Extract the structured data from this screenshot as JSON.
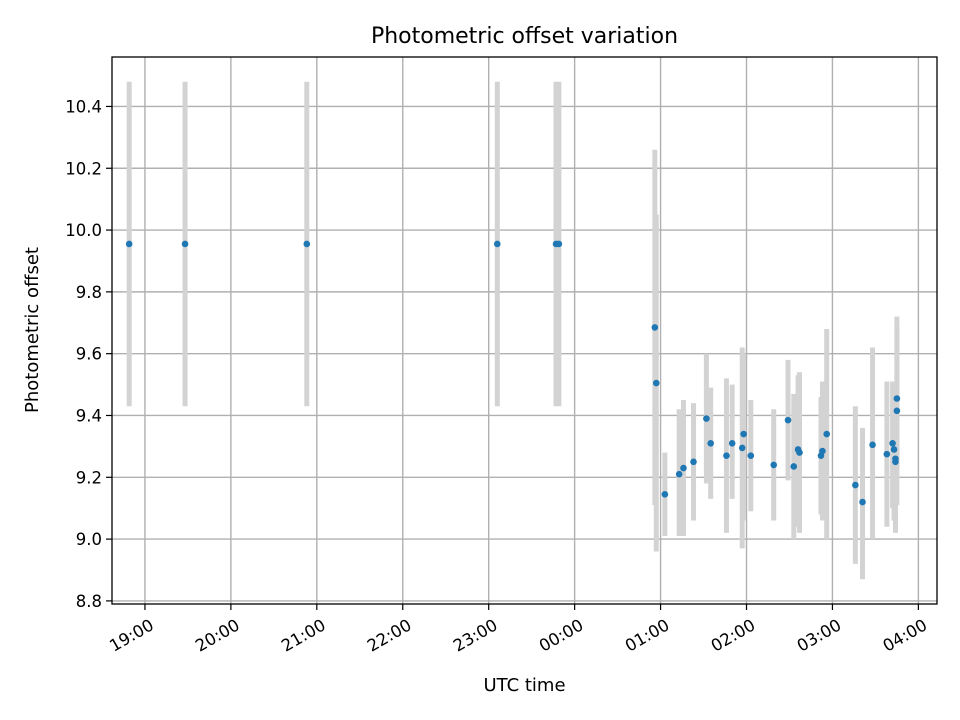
{
  "chart_data": {
    "type": "scatter",
    "title": "Photometric offset variation",
    "xlabel": "UTC time",
    "ylabel": "Photometric offset",
    "x_axis": "time",
    "x_unit": "UTC hour",
    "xlim": [
      "18:37",
      "04:13"
    ],
    "ylim": [
      8.79,
      10.56
    ],
    "xticks": [
      "19:00",
      "20:00",
      "21:00",
      "22:00",
      "23:00",
      "00:00",
      "01:00",
      "02:00",
      "03:00",
      "04:00"
    ],
    "yticks": [
      "8.8",
      "9.0",
      "9.2",
      "9.4",
      "9.6",
      "9.8",
      "10.0",
      "10.2",
      "10.4"
    ],
    "grid": true,
    "marker_color": "#1f77b4",
    "error_bar_color": "#d3d3d3",
    "points": [
      {
        "x": "18:49",
        "y": 9.955,
        "lo": 9.43,
        "hi": 10.48
      },
      {
        "x": "19:28",
        "y": 9.955,
        "lo": 9.43,
        "hi": 10.48
      },
      {
        "x": "20:53",
        "y": 9.955,
        "lo": 9.43,
        "hi": 10.48
      },
      {
        "x": "23:06",
        "y": 9.955,
        "lo": 9.43,
        "hi": 10.48
      },
      {
        "x": "23:47",
        "y": 9.955,
        "lo": 9.43,
        "hi": 10.48
      },
      {
        "x": "23:49",
        "y": 9.955,
        "lo": 9.43,
        "hi": 10.48
      },
      {
        "x": "00:56",
        "y": 9.685,
        "lo": 9.11,
        "hi": 10.26
      },
      {
        "x": "00:57",
        "y": 9.505,
        "lo": 8.96,
        "hi": 10.05
      },
      {
        "x": "01:03",
        "y": 9.145,
        "lo": 9.01,
        "hi": 9.28
      },
      {
        "x": "01:13",
        "y": 9.21,
        "lo": 9.01,
        "hi": 9.42
      },
      {
        "x": "01:16",
        "y": 9.23,
        "lo": 9.01,
        "hi": 9.45
      },
      {
        "x": "01:23",
        "y": 9.25,
        "lo": 9.06,
        "hi": 9.44
      },
      {
        "x": "01:32",
        "y": 9.39,
        "lo": 9.18,
        "hi": 9.6
      },
      {
        "x": "01:35",
        "y": 9.31,
        "lo": 9.13,
        "hi": 9.49
      },
      {
        "x": "01:46",
        "y": 9.27,
        "lo": 9.02,
        "hi": 9.52
      },
      {
        "x": "01:50",
        "y": 9.31,
        "lo": 9.13,
        "hi": 9.5
      },
      {
        "x": "01:57",
        "y": 9.295,
        "lo": 8.97,
        "hi": 9.62
      },
      {
        "x": "01:58",
        "y": 9.34,
        "lo": 9.06,
        "hi": 9.6
      },
      {
        "x": "02:03",
        "y": 9.27,
        "lo": 9.09,
        "hi": 9.45
      },
      {
        "x": "02:19",
        "y": 9.24,
        "lo": 9.06,
        "hi": 9.42
      },
      {
        "x": "02:29",
        "y": 9.385,
        "lo": 9.19,
        "hi": 9.58
      },
      {
        "x": "02:33",
        "y": 9.235,
        "lo": 9.0,
        "hi": 9.47
      },
      {
        "x": "02:36",
        "y": 9.29,
        "lo": 9.04,
        "hi": 9.53
      },
      {
        "x": "02:37",
        "y": 9.28,
        "lo": 9.02,
        "hi": 9.54
      },
      {
        "x": "02:52",
        "y": 9.27,
        "lo": 9.08,
        "hi": 9.46
      },
      {
        "x": "02:53",
        "y": 9.285,
        "lo": 9.06,
        "hi": 9.51
      },
      {
        "x": "02:56",
        "y": 9.34,
        "lo": 9.0,
        "hi": 9.68
      },
      {
        "x": "03:16",
        "y": 9.175,
        "lo": 8.92,
        "hi": 9.43
      },
      {
        "x": "03:21",
        "y": 9.12,
        "lo": 8.87,
        "hi": 9.36
      },
      {
        "x": "03:28",
        "y": 9.305,
        "lo": 9.0,
        "hi": 9.62
      },
      {
        "x": "03:38",
        "y": 9.275,
        "lo": 9.04,
        "hi": 9.51
      },
      {
        "x": "03:42",
        "y": 9.31,
        "lo": 9.1,
        "hi": 9.51
      },
      {
        "x": "03:43",
        "y": 9.29,
        "lo": 9.06,
        "hi": 9.5
      },
      {
        "x": "03:44",
        "y": 9.25,
        "lo": 9.02,
        "hi": 9.48
      },
      {
        "x": "03:44",
        "y": 9.26,
        "lo": 9.05,
        "hi": 9.45
      },
      {
        "x": "03:45",
        "y": 9.415,
        "lo": 9.11,
        "hi": 9.72
      },
      {
        "x": "03:45",
        "y": 9.455,
        "lo": 9.23,
        "hi": 9.69
      }
    ]
  }
}
